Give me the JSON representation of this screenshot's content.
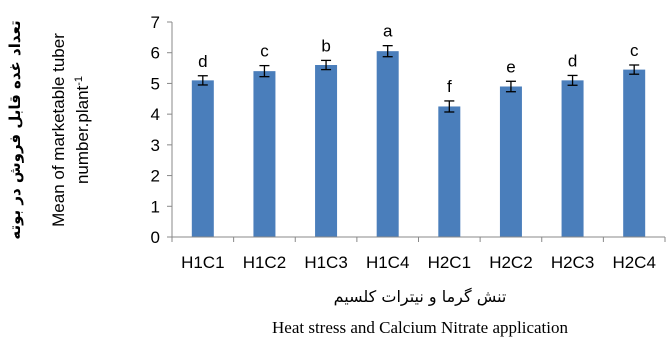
{
  "chart_data": {
    "type": "bar",
    "categories": [
      "H1C1",
      "H1C2",
      "H1C3",
      "H1C4",
      "H2C1",
      "H2C2",
      "H2C3",
      "H2C4"
    ],
    "values": [
      5.1,
      5.4,
      5.6,
      6.05,
      4.25,
      4.9,
      5.1,
      5.45
    ],
    "errors": [
      0.15,
      0.18,
      0.15,
      0.18,
      0.18,
      0.17,
      0.16,
      0.15
    ],
    "significance_letters": [
      "d",
      "c",
      "b",
      "a",
      "f",
      "e",
      "d",
      "c"
    ],
    "ylim": [
      0,
      7
    ],
    "yticks": [
      "0",
      "1",
      "2",
      "3",
      "4",
      "5",
      "6",
      "7"
    ],
    "ylabel_line1": "Mean of marketable tuber",
    "ylabel_line2": "number.plant",
    "ylabel_superscript": "-1",
    "ylabel_persian": "تعداد غده قابل فروش در بوته",
    "xlabel_persian": "تنش گرما و نیترات کلسیم",
    "xlabel": "Heat stress and Calcium Nitrate application",
    "bar_color": "#4a7ebb",
    "grid": false,
    "legend": "none"
  }
}
